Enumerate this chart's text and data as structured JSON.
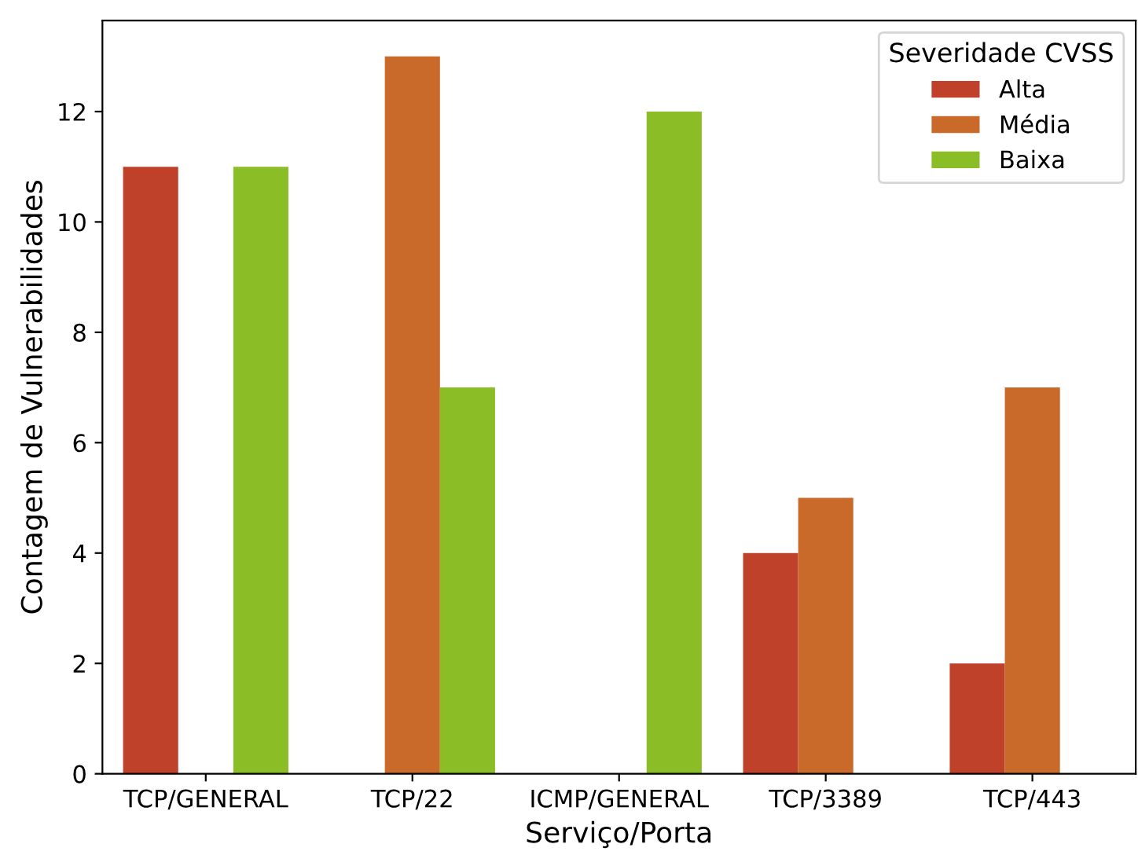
{
  "chart_data": {
    "type": "bar",
    "xlabel": "Serviço/Porta",
    "ylabel": "Contagem de Vulnerabilidades",
    "legend_title": "Severidade CVSS",
    "categories": [
      "TCP/GENERAL",
      "TCP/22",
      "ICMP/GENERAL",
      "TCP/3389",
      "TCP/443"
    ],
    "series": [
      {
        "name": "Alta",
        "color": "#c0412a",
        "values": [
          11,
          null,
          null,
          4,
          2
        ]
      },
      {
        "name": "Média",
        "color": "#c96a2a",
        "values": [
          null,
          13,
          null,
          5,
          7
        ]
      },
      {
        "name": "Baixa",
        "color": "#8bbd27",
        "values": [
          11,
          7,
          12,
          null,
          null
        ]
      }
    ],
    "ylim": [
      0,
      13.65
    ],
    "yticks": [
      0,
      2,
      4,
      6,
      8,
      10,
      12
    ],
    "grid": false,
    "legend": "top right"
  }
}
